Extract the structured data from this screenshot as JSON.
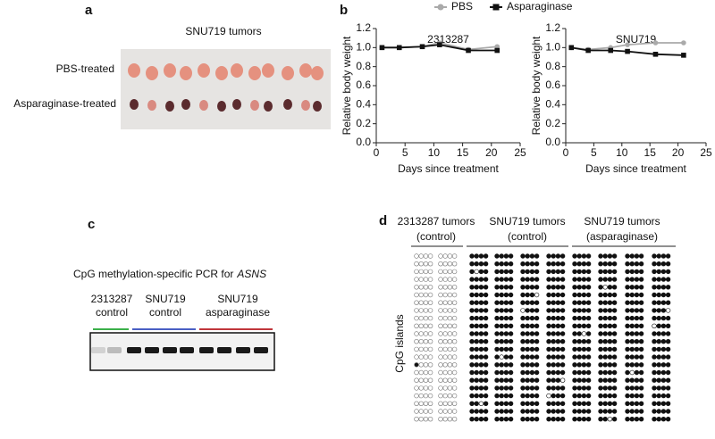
{
  "panel_a": {
    "letter": "a",
    "title": "SNU719 tumors",
    "row_labels": [
      "PBS-treated",
      "Asparaginase-treated"
    ]
  },
  "panel_b": {
    "letter": "b"
  },
  "chart_data": [
    {
      "type": "line",
      "title": "2313287",
      "x_label": "Days since treatment",
      "y_label": "Relative body weight",
      "x": [
        1,
        4,
        8,
        11,
        16,
        21
      ],
      "series": [
        {
          "name": "PBS",
          "color": "#aaaaaa",
          "values": [
            1.0,
            1.0,
            1.01,
            1.05,
            0.98,
            1.01
          ]
        },
        {
          "name": "Asparaginase",
          "color": "#111111",
          "values": [
            1.0,
            1.0,
            1.01,
            1.03,
            0.97,
            0.97
          ]
        }
      ],
      "xlim": [
        0,
        25
      ],
      "xticks": [
        0,
        5,
        10,
        15,
        20,
        25
      ],
      "ylim": [
        0,
        1.2
      ],
      "yticks": [
        {
          "value": 0,
          "label": "0.0"
        },
        0.2,
        0.4,
        0.6,
        0.8,
        {
          "value": 1,
          "label": "1.0"
        },
        1.2
      ]
    },
    {
      "type": "line",
      "title": "SNU719",
      "x_label": "Days since treatment",
      "y_label": "Relative body weight",
      "x": [
        1,
        4,
        8,
        11,
        16,
        21
      ],
      "series": [
        {
          "name": "PBS",
          "color": "#aaaaaa",
          "values": [
            1.0,
            0.98,
            1.0,
            1.03,
            1.05,
            1.05
          ]
        },
        {
          "name": "Asparaginase",
          "color": "#111111",
          "values": [
            1.0,
            0.97,
            0.97,
            0.96,
            0.93,
            0.92
          ]
        }
      ],
      "xlim": [
        0,
        25
      ],
      "xticks": [
        0,
        5,
        10,
        15,
        20,
        25
      ],
      "ylim": [
        0,
        1.2
      ],
      "yticks": [
        {
          "value": 0,
          "label": "0.0"
        },
        0.2,
        0.4,
        0.6,
        0.8,
        {
          "value": 1,
          "label": "1.0"
        },
        1.2
      ]
    }
  ],
  "panel_c": {
    "letter": "c",
    "caption": "CpG methylation-specific PCR for",
    "caption_gene": "ASNS",
    "lanes": [
      [
        "2313287",
        "control"
      ],
      [
        "SNU719",
        "control"
      ],
      [
        "SNU719",
        "asparaginase"
      ]
    ]
  },
  "panel_d": {
    "letter": "d",
    "groups": [
      [
        "2313287 tumors",
        "(control)"
      ],
      [
        "SNU719 tumors",
        "(control)"
      ],
      [
        "SNU719 tumors",
        "(asparaginase)"
      ]
    ],
    "y_label": "CpG islands"
  }
}
